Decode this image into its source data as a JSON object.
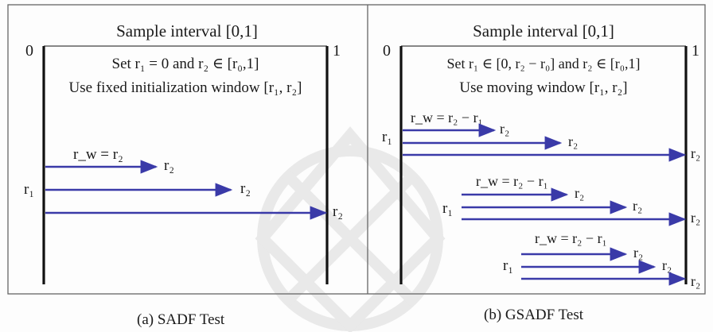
{
  "panels": [
    {
      "heading": "Sample interval [0,1]",
      "start_label": "0",
      "end_label": "1",
      "setting_line": "Set r₁ = 0 and r₂ ∈ [r₀,1]",
      "window_line": "Use fixed initialization window [r₁, r₂]",
      "rw_label": "r_w = r₂",
      "r1_label": "r₁",
      "r2_label": "r₂",
      "caption": "(a) SADF Test"
    },
    {
      "heading": "Sample interval [0,1]",
      "start_label": "0",
      "end_label": "1",
      "setting_line": "Set r₁ ∈ [0, r₂ − r₀] and r₂ ∈ [r₀,1]",
      "window_line": "Use moving window [r₁, r₂]",
      "rw_label": "r_w = r₂ − r₁",
      "r1_label": "r₁",
      "r2_label": "r₂",
      "caption": "(b) GSADF Test"
    }
  ],
  "colors": {
    "arrow": "#3a3aa8",
    "line": "#111111",
    "frame": "#555555",
    "watermark": "#d9d9d9"
  }
}
